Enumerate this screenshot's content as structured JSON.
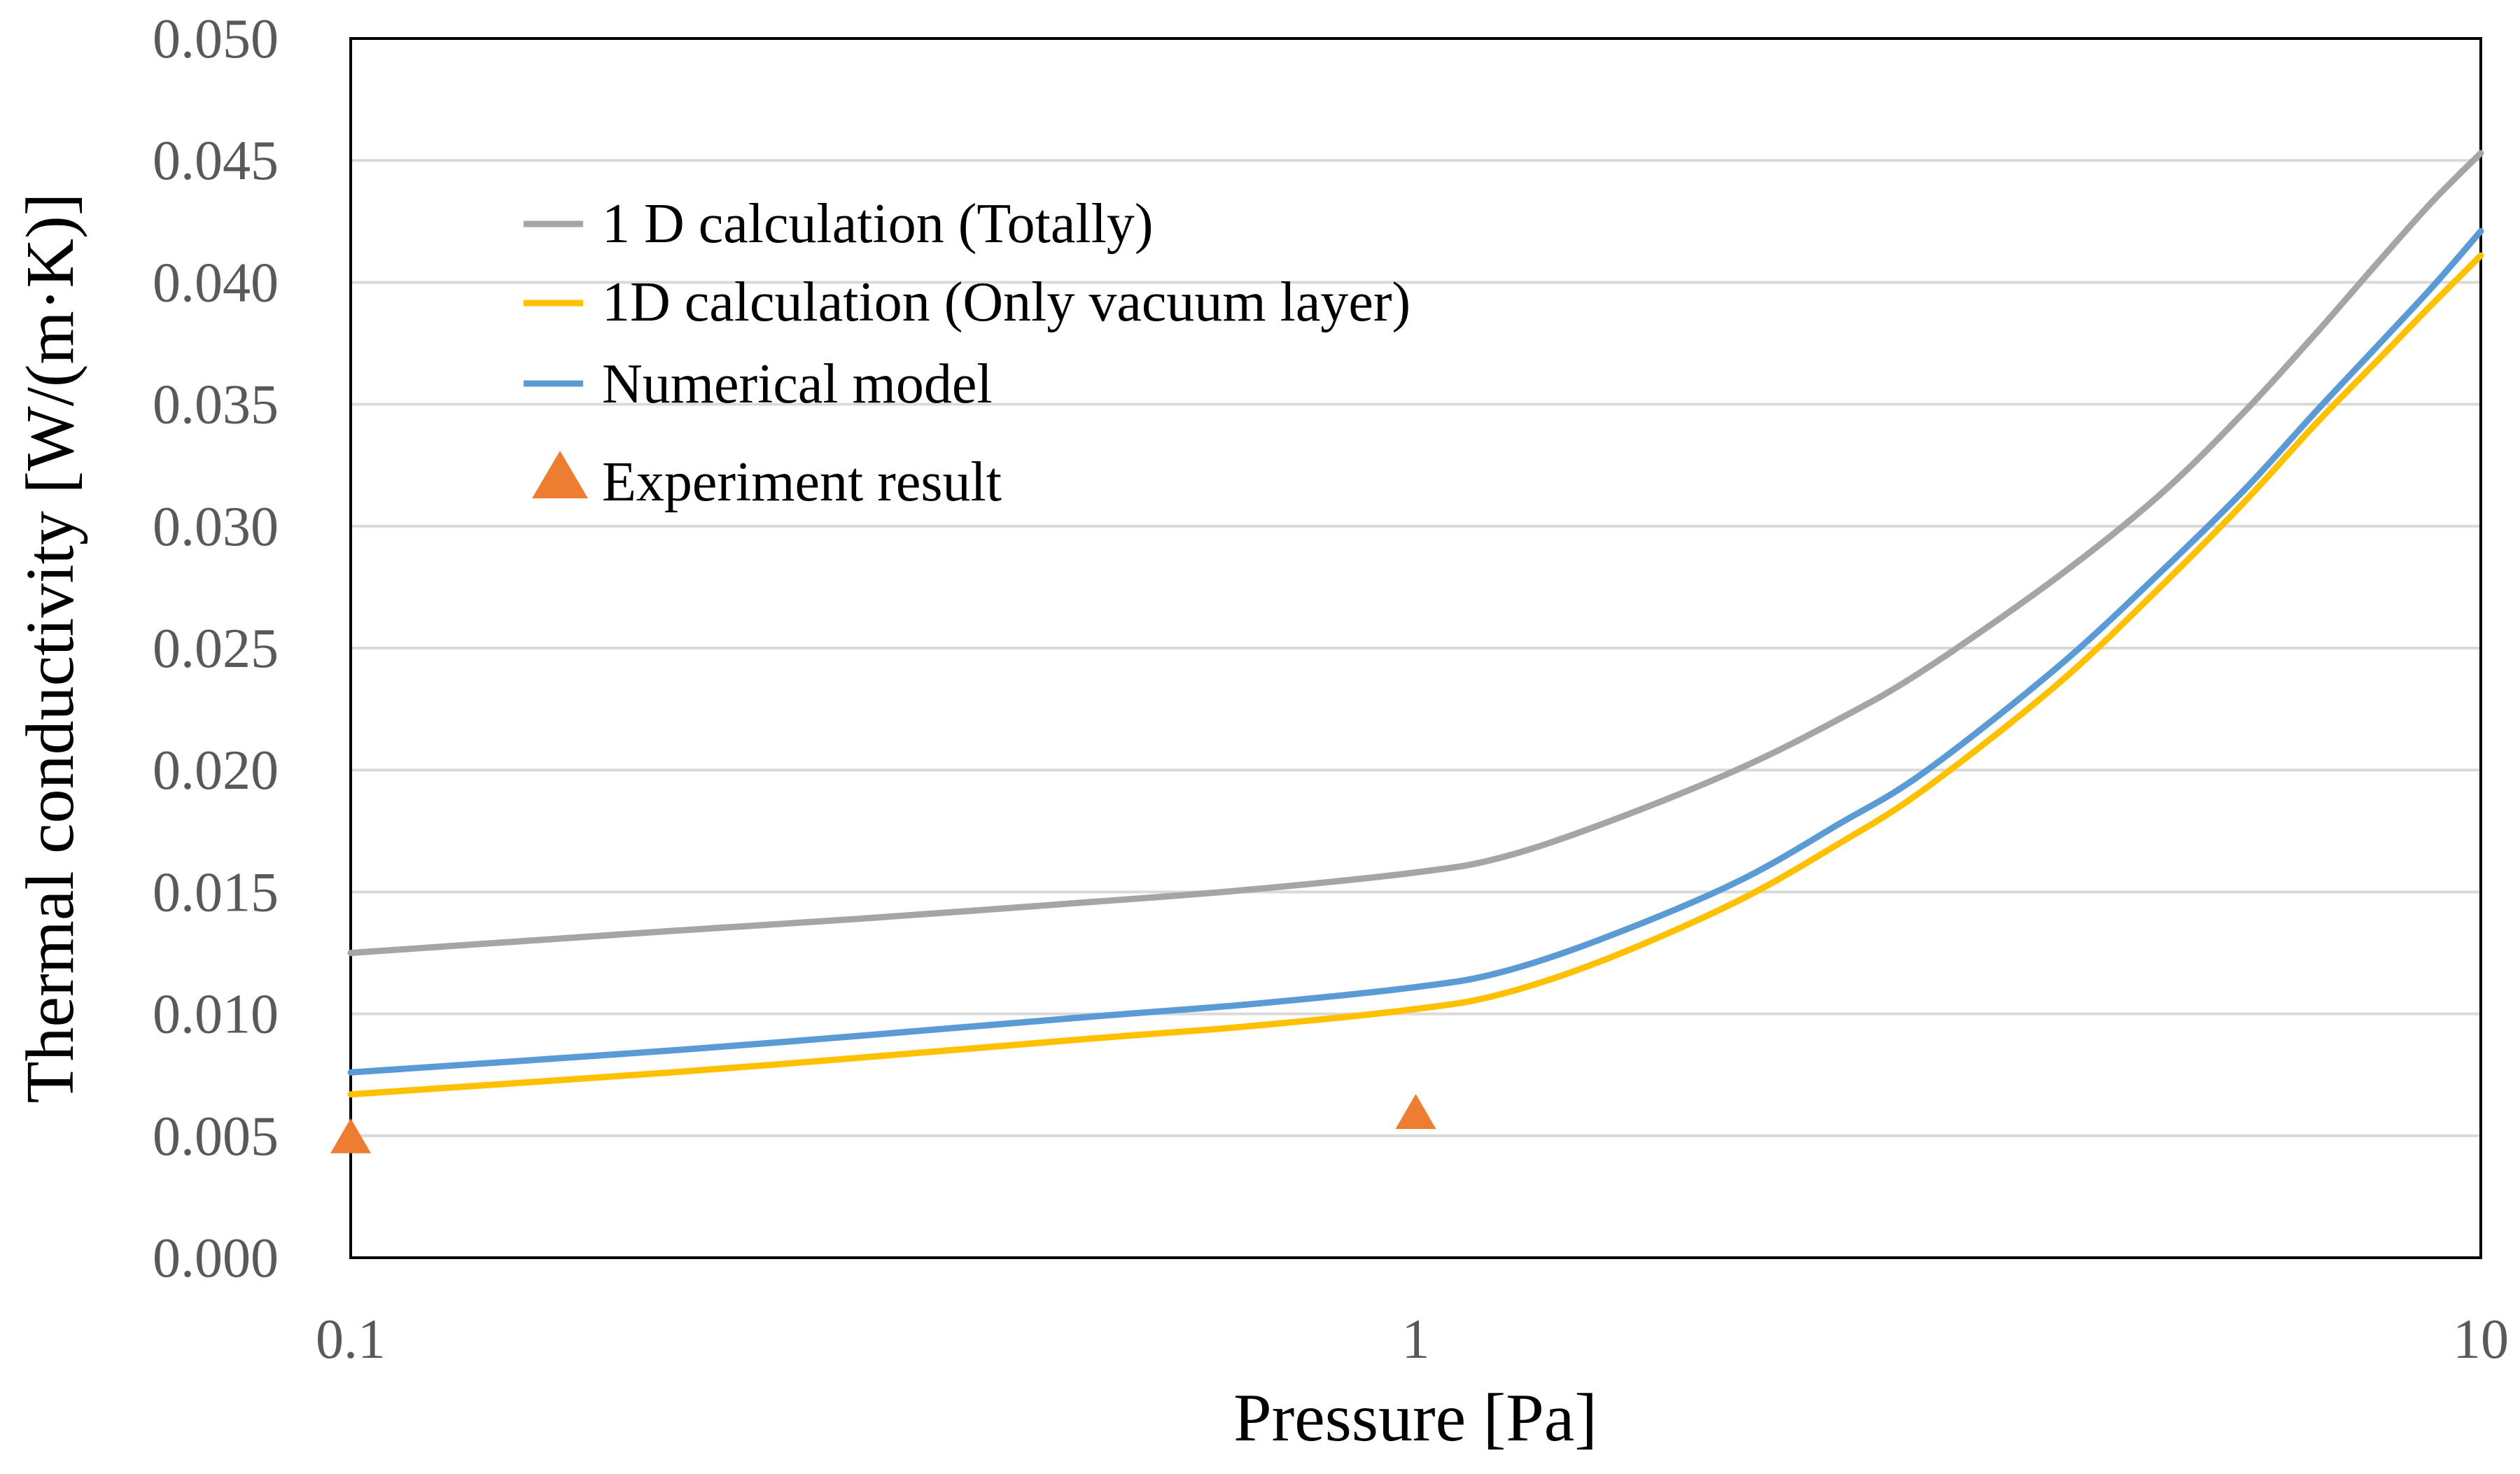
{
  "chart_data": {
    "type": "line",
    "title": "",
    "xlabel": "Pressure [Pa]",
    "ylabel": "Thermal conductivity [W/(m·K)]",
    "xscale": "log",
    "xlim": [
      0.1,
      10
    ],
    "ylim": [
      0,
      0.05
    ],
    "x_ticks": [
      {
        "value": 0.1,
        "label": "0.1"
      },
      {
        "value": 1,
        "label": "1"
      },
      {
        "value": 10,
        "label": "10"
      }
    ],
    "y_ticks": [
      {
        "value": 0.0,
        "label": "0.000"
      },
      {
        "value": 0.005,
        "label": "0.005"
      },
      {
        "value": 0.01,
        "label": "0.010"
      },
      {
        "value": 0.015,
        "label": "0.015"
      },
      {
        "value": 0.02,
        "label": "0.020"
      },
      {
        "value": 0.025,
        "label": "0.025"
      },
      {
        "value": 0.03,
        "label": "0.030"
      },
      {
        "value": 0.035,
        "label": "0.035"
      },
      {
        "value": 0.04,
        "label": "0.040"
      },
      {
        "value": 0.045,
        "label": "0.045"
      },
      {
        "value": 0.05,
        "label": "0.050"
      }
    ],
    "grid": "horizontal",
    "legend_position": "top-left",
    "series": [
      {
        "name": "1 D calculation (Totally)",
        "kind": "line",
        "color": "#A5A5A5",
        "points": [
          [
            0.1,
            0.0125
          ],
          [
            0.2,
            0.0134
          ],
          [
            0.3,
            0.0139
          ],
          [
            0.5,
            0.0146
          ],
          [
            0.7,
            0.0151
          ],
          [
            1,
            0.0158
          ],
          [
            1.2,
            0.0164
          ],
          [
            1.5,
            0.0178
          ],
          [
            2,
            0.02
          ],
          [
            2.5,
            0.0221
          ],
          [
            3,
            0.0241
          ],
          [
            4,
            0.0279
          ],
          [
            5,
            0.0313
          ],
          [
            6,
            0.0347
          ],
          [
            7,
            0.0379
          ],
          [
            8,
            0.0408
          ],
          [
            9,
            0.0433
          ],
          [
            10,
            0.0453
          ]
        ]
      },
      {
        "name": "1D calculation (Only vacuum layer)",
        "kind": "line",
        "color": "#FFC000",
        "points": [
          [
            0.1,
            0.0067
          ],
          [
            0.2,
            0.0076
          ],
          [
            0.3,
            0.0082
          ],
          [
            0.5,
            0.009
          ],
          [
            0.7,
            0.0095
          ],
          [
            1,
            0.0102
          ],
          [
            1.2,
            0.0108
          ],
          [
            1.5,
            0.0122
          ],
          [
            2,
            0.0146
          ],
          [
            2.5,
            0.017
          ],
          [
            3,
            0.0192
          ],
          [
            4,
            0.0235
          ],
          [
            5,
            0.0275
          ],
          [
            6,
            0.031
          ],
          [
            7,
            0.0342
          ],
          [
            8,
            0.0368
          ],
          [
            9,
            0.0391
          ],
          [
            10,
            0.0411
          ]
        ]
      },
      {
        "name": "Numerical model",
        "kind": "line",
        "color": "#5B9BD5",
        "points": [
          [
            0.1,
            0.0076
          ],
          [
            0.2,
            0.0085
          ],
          [
            0.3,
            0.0091
          ],
          [
            0.5,
            0.0099
          ],
          [
            0.7,
            0.0104
          ],
          [
            1,
            0.0111
          ],
          [
            1.2,
            0.0117
          ],
          [
            1.5,
            0.0131
          ],
          [
            2,
            0.0154
          ],
          [
            2.5,
            0.0178
          ],
          [
            3,
            0.0199
          ],
          [
            4,
            0.0242
          ],
          [
            5,
            0.0281
          ],
          [
            6,
            0.0315
          ],
          [
            7,
            0.0347
          ],
          [
            8,
            0.0374
          ],
          [
            9,
            0.0398
          ],
          [
            10,
            0.0421
          ]
        ]
      },
      {
        "name": "Experiment result",
        "kind": "scatter",
        "marker": "triangle",
        "color": "#ED7D31",
        "points": [
          [
            0.1,
            0.005
          ],
          [
            1,
            0.006
          ]
        ]
      }
    ]
  }
}
